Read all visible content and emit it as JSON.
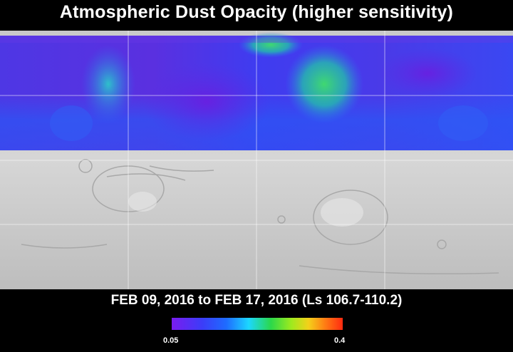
{
  "title": "Atmospheric Dust Opacity (higher sensitivity)",
  "caption": "FEB 09, 2016 to FEB 17, 2016 (Ls 106.7-110.2)",
  "colorbar": {
    "min_label": "0.05",
    "max_label": "0.4",
    "colors": [
      "#7a1cf0",
      "#3b3df8",
      "#1e6cff",
      "#1cd7ff",
      "#2bd84a",
      "#9fea1e",
      "#f4d01a",
      "#ff7a14",
      "#ff2a10"
    ]
  }
}
